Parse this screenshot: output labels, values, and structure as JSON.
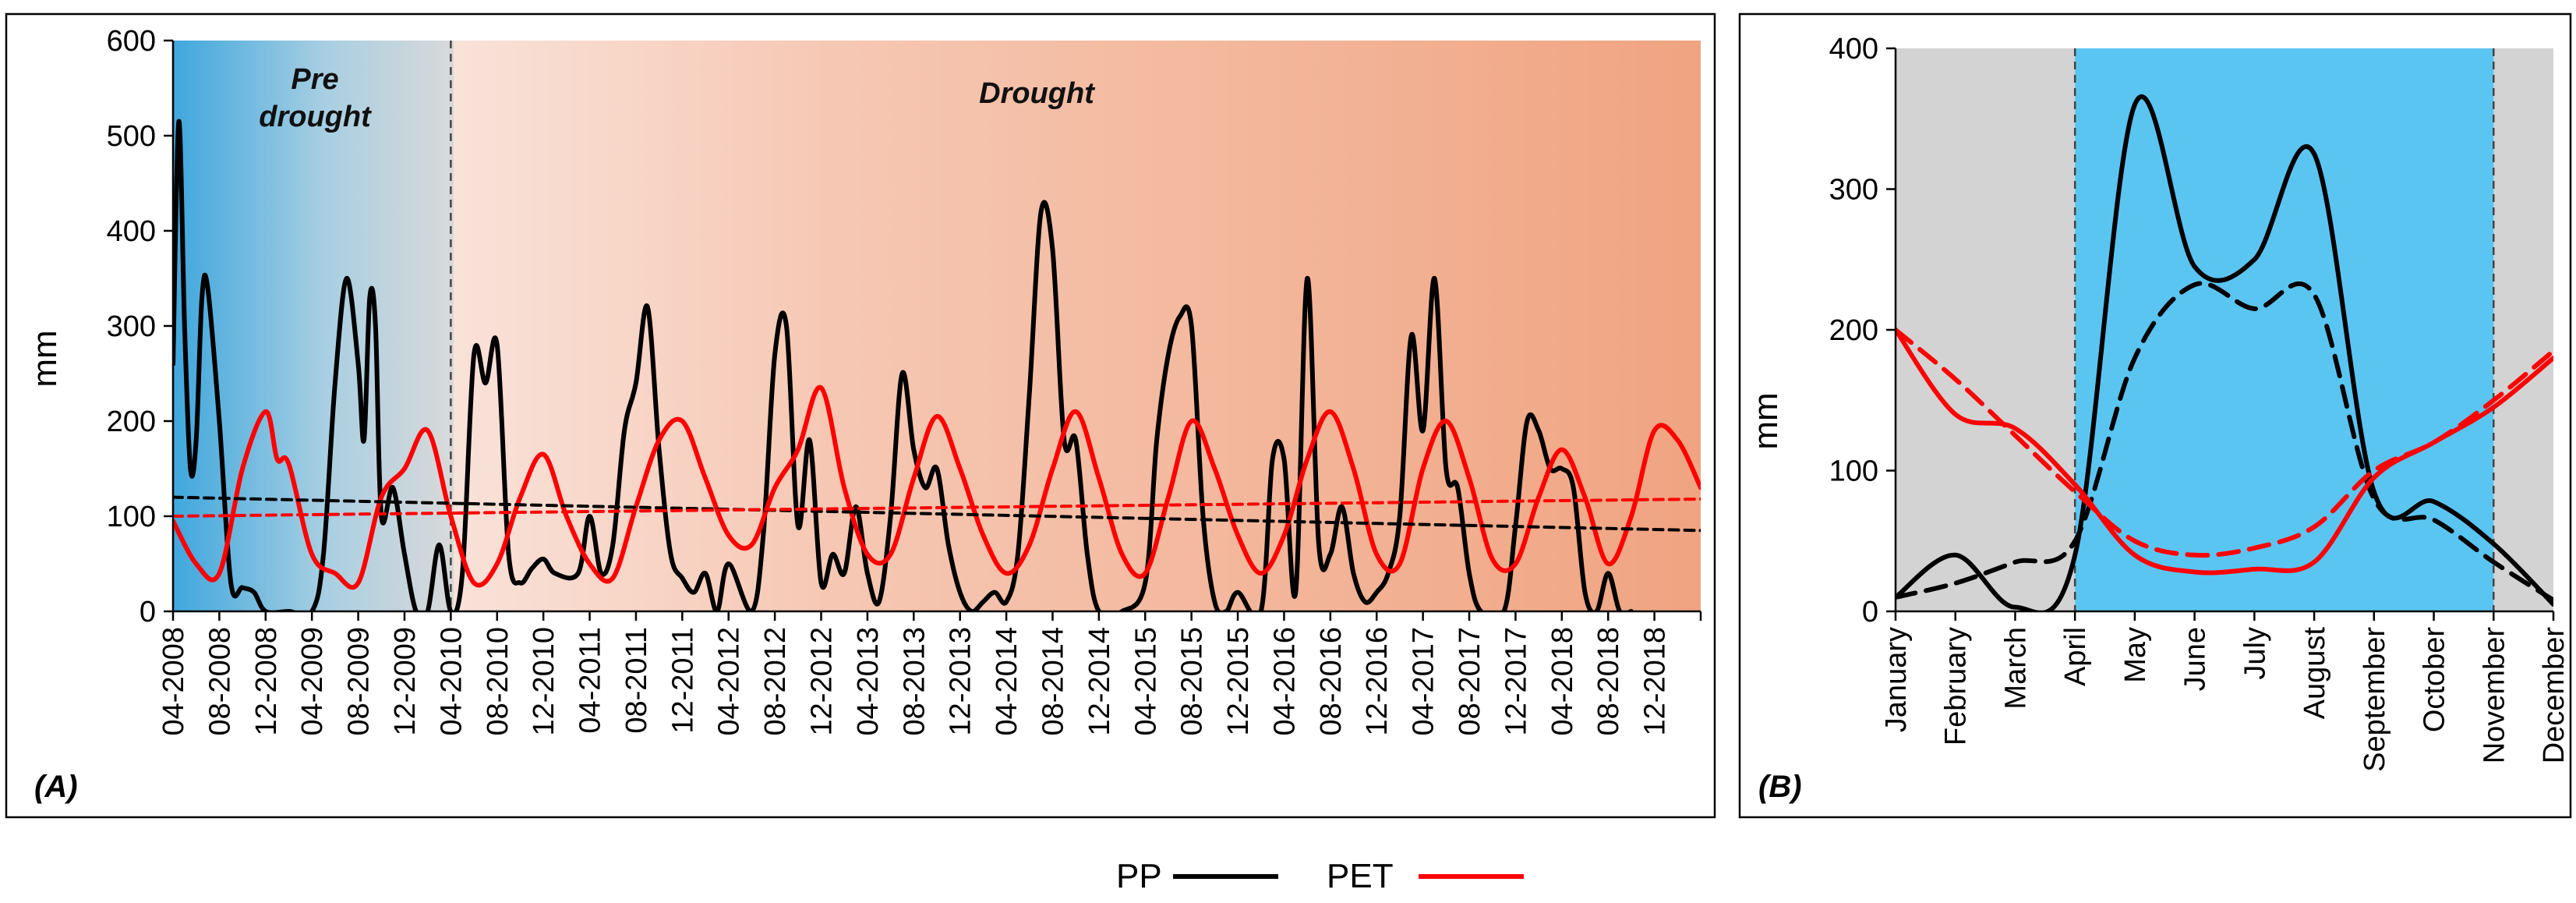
{
  "chart_data": [
    {
      "panel": "(A)",
      "type": "line",
      "ylabel": "mm",
      "ylim": [
        0,
        600
      ],
      "yticks": [
        "0",
        "100",
        "200",
        "300",
        "400",
        "500",
        "600"
      ],
      "x_tick_labels": [
        "04-2008",
        "08-2008",
        "12-2008",
        "04-2009",
        "08-2009",
        "12-2009",
        "04-2010",
        "08-2010",
        "12-2010",
        "04-2011",
        "08-2011",
        "12-2011",
        "04-2012",
        "08-2012",
        "12-2012",
        "04-2013",
        "08-2013",
        "12-2013",
        "04-2014",
        "08-2014",
        "12-2014",
        "04-2015",
        "08-2015",
        "12-2015",
        "04-2016",
        "08-2016",
        "12-2016",
        "04-2017",
        "08-2017",
        "12-2017",
        "04-2018",
        "08-2018",
        "12-2018"
      ],
      "x_unit": "month index from 04-2008",
      "x_range": [
        0,
        132
      ],
      "annotations": [
        {
          "text_lines": [
            "Pre",
            "drought"
          ],
          "period": "04-2008 to 04-2010"
        },
        {
          "text_lines": [
            "Drought"
          ],
          "period": "04-2010 to 2019"
        }
      ],
      "divider_at_month": 24,
      "series": [
        {
          "name": "PP",
          "color": "#000000",
          "style": "solid",
          "points": [
            [
              0,
              260
            ],
            [
              0.5,
              515
            ],
            [
              1,
              300
            ],
            [
              1.5,
              150
            ],
            [
              2,
              180
            ],
            [
              2.5,
              330
            ],
            [
              3,
              340
            ],
            [
              4,
              200
            ],
            [
              5,
              30
            ],
            [
              6,
              25
            ],
            [
              7,
              20
            ],
            [
              8,
              0
            ],
            [
              10,
              0
            ],
            [
              12,
              0
            ],
            [
              13,
              60
            ],
            [
              14,
              240
            ],
            [
              15,
              350
            ],
            [
              16,
              260
            ],
            [
              16.5,
              180
            ],
            [
              17,
              330
            ],
            [
              17.5,
              300
            ],
            [
              18,
              100
            ],
            [
              19,
              130
            ],
            [
              20,
              60
            ],
            [
              21,
              0
            ],
            [
              22,
              0
            ],
            [
              23,
              70
            ],
            [
              24,
              0
            ],
            [
              25,
              40
            ],
            [
              26,
              270
            ],
            [
              27,
              240
            ],
            [
              28,
              280
            ],
            [
              29,
              60
            ],
            [
              30,
              30
            ],
            [
              31,
              45
            ],
            [
              32,
              55
            ],
            [
              33,
              40
            ],
            [
              35,
              40
            ],
            [
              36,
              100
            ],
            [
              37,
              40
            ],
            [
              38,
              70
            ],
            [
              39,
              190
            ],
            [
              40,
              240
            ],
            [
              41,
              320
            ],
            [
              42,
              170
            ],
            [
              43,
              60
            ],
            [
              44,
              35
            ],
            [
              45,
              20
            ],
            [
              46,
              40
            ],
            [
              47,
              0
            ],
            [
              48,
              50
            ],
            [
              50,
              0
            ],
            [
              51,
              80
            ],
            [
              52,
              270
            ],
            [
              53,
              300
            ],
            [
              54,
              90
            ],
            [
              55,
              180
            ],
            [
              56,
              30
            ],
            [
              57,
              60
            ],
            [
              58,
              40
            ],
            [
              59,
              110
            ],
            [
              60,
              40
            ],
            [
              61,
              10
            ],
            [
              62,
              100
            ],
            [
              63,
              250
            ],
            [
              64,
              170
            ],
            [
              65,
              130
            ],
            [
              66,
              150
            ],
            [
              67,
              70
            ],
            [
              68,
              20
            ],
            [
              69,
              0
            ],
            [
              70,
              10
            ],
            [
              71,
              20
            ],
            [
              72,
              10
            ],
            [
              73,
              60
            ],
            [
              74,
              230
            ],
            [
              75,
              420
            ],
            [
              76,
              380
            ],
            [
              77,
              180
            ],
            [
              78,
              180
            ],
            [
              79,
              60
            ],
            [
              80,
              0
            ],
            [
              82,
              0
            ],
            [
              84,
              30
            ],
            [
              85,
              180
            ],
            [
              86,
              270
            ],
            [
              87,
              310
            ],
            [
              88,
              300
            ],
            [
              89,
              100
            ],
            [
              90,
              10
            ],
            [
              91,
              0
            ],
            [
              92,
              20
            ],
            [
              94,
              0
            ],
            [
              95,
              160
            ],
            [
              96,
              160
            ],
            [
              97,
              20
            ],
            [
              98,
              350
            ],
            [
              99,
              70
            ],
            [
              100,
              60
            ],
            [
              101,
              110
            ],
            [
              102,
              40
            ],
            [
              103,
              10
            ],
            [
              104,
              20
            ],
            [
              105,
              40
            ],
            [
              106,
              100
            ],
            [
              107,
              290
            ],
            [
              108,
              190
            ],
            [
              109,
              350
            ],
            [
              110,
              150
            ],
            [
              111,
              130
            ],
            [
              112,
              40
            ],
            [
              113,
              0
            ],
            [
              115,
              0
            ],
            [
              116,
              90
            ],
            [
              117,
              200
            ],
            [
              118,
              190
            ],
            [
              119,
              150
            ],
            [
              120,
              150
            ],
            [
              121,
              130
            ],
            [
              122,
              20
            ],
            [
              123,
              0
            ],
            [
              124,
              40
            ],
            [
              125,
              0
            ],
            [
              126,
              0
            ]
          ]
        },
        {
          "name": "PET",
          "color": "#ff0000",
          "style": "solid",
          "points": [
            [
              0,
              95
            ],
            [
              2,
              50
            ],
            [
              4,
              40
            ],
            [
              6,
              150
            ],
            [
              8,
              210
            ],
            [
              9,
              160
            ],
            [
              10,
              155
            ],
            [
              12,
              60
            ],
            [
              14,
              40
            ],
            [
              16,
              30
            ],
            [
              18,
              120
            ],
            [
              20,
              150
            ],
            [
              22,
              190
            ],
            [
              24,
              100
            ],
            [
              26,
              30
            ],
            [
              28,
              50
            ],
            [
              30,
              120
            ],
            [
              32,
              165
            ],
            [
              34,
              100
            ],
            [
              36,
              50
            ],
            [
              38,
              35
            ],
            [
              40,
              110
            ],
            [
              42,
              180
            ],
            [
              44,
              200
            ],
            [
              46,
              140
            ],
            [
              48,
              80
            ],
            [
              50,
              70
            ],
            [
              52,
              130
            ],
            [
              54,
              170
            ],
            [
              56,
              235
            ],
            [
              58,
              130
            ],
            [
              60,
              60
            ],
            [
              62,
              60
            ],
            [
              64,
              140
            ],
            [
              66,
              205
            ],
            [
              68,
              150
            ],
            [
              70,
              80
            ],
            [
              72,
              40
            ],
            [
              74,
              70
            ],
            [
              76,
              150
            ],
            [
              78,
              210
            ],
            [
              80,
              140
            ],
            [
              82,
              60
            ],
            [
              84,
              40
            ],
            [
              86,
              120
            ],
            [
              88,
              200
            ],
            [
              90,
              150
            ],
            [
              92,
              80
            ],
            [
              94,
              40
            ],
            [
              96,
              80
            ],
            [
              98,
              160
            ],
            [
              100,
              210
            ],
            [
              102,
              150
            ],
            [
              104,
              60
            ],
            [
              106,
              50
            ],
            [
              108,
              150
            ],
            [
              110,
              200
            ],
            [
              112,
              140
            ],
            [
              114,
              55
            ],
            [
              116,
              50
            ],
            [
              118,
              120
            ],
            [
              120,
              170
            ],
            [
              122,
              120
            ],
            [
              124,
              50
            ],
            [
              126,
              100
            ],
            [
              128,
              190
            ],
            [
              130,
              180
            ],
            [
              132,
              130
            ]
          ]
        },
        {
          "name": "PP trend",
          "color": "#000000",
          "style": "dashed",
          "points": [
            [
              0,
              120
            ],
            [
              132,
              85
            ]
          ]
        },
        {
          "name": "PET trend",
          "color": "#ff0000",
          "style": "dashed",
          "points": [
            [
              0,
              100
            ],
            [
              132,
              118
            ]
          ]
        }
      ]
    },
    {
      "panel": "(B)",
      "type": "line",
      "ylabel": "mm",
      "ylim": [
        0,
        400
      ],
      "yticks": [
        "0",
        "100",
        "200",
        "300",
        "400"
      ],
      "categories": [
        "January",
        "February",
        "March",
        "April",
        "May",
        "June",
        "July",
        "August",
        "September",
        "October",
        "November",
        "December"
      ],
      "highlight_range": [
        "April",
        "November"
      ],
      "series": [
        {
          "name": "PP",
          "color": "#000000",
          "style": "solid",
          "values": [
            10,
            40,
            3,
            40,
            360,
            245,
            250,
            325,
            85,
            78,
            48,
            5
          ]
        },
        {
          "name": "PP dashed",
          "color": "#000000",
          "style": "dashed",
          "values": [
            10,
            20,
            35,
            50,
            180,
            232,
            215,
            225,
            80,
            65,
            35,
            8
          ]
        },
        {
          "name": "PET",
          "color": "#ff0000",
          "style": "solid",
          "values": [
            200,
            140,
            130,
            90,
            40,
            28,
            30,
            35,
            95,
            120,
            145,
            180
          ]
        },
        {
          "name": "PET dashed",
          "color": "#ff0000",
          "style": "dashed",
          "values": [
            200,
            165,
            125,
            85,
            50,
            40,
            45,
            60,
            100,
            120,
            150,
            185
          ]
        }
      ]
    }
  ],
  "legend": [
    {
      "label": "PP",
      "color": "#000000"
    },
    {
      "label": "PET",
      "color": "#ff0000"
    }
  ]
}
